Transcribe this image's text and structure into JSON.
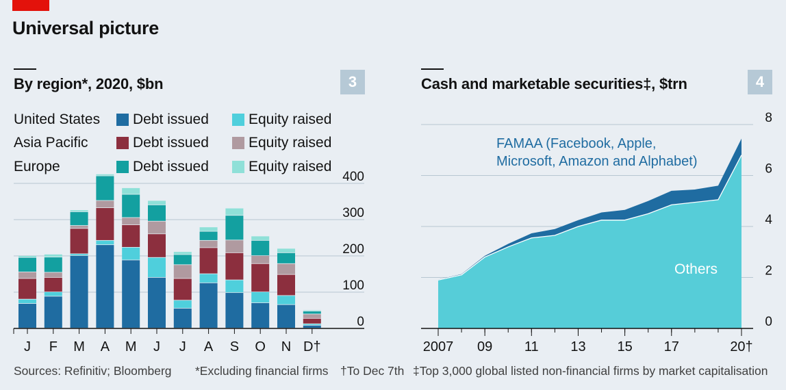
{
  "header": {
    "title": "Universal picture"
  },
  "panel3": {
    "title": "By region*, 2020, $bn",
    "number": "3",
    "legend": [
      {
        "region": "United States",
        "debt": "Debt issued",
        "equity": "Equity raised"
      },
      {
        "region": "Asia Pacific",
        "debt": "Debt issued",
        "equity": "Equity raised"
      },
      {
        "region": "Europe",
        "debt": "Debt issued",
        "equity": "Equity raised"
      }
    ]
  },
  "panel4": {
    "title": "Cash and marketable securities‡, $trn",
    "number": "4",
    "annotation_famaa_line1": "FAMAA (Facebook, Apple,",
    "annotation_famaa_line2": "Microsoft, Amazon and Alphabet)",
    "annotation_others": "Others"
  },
  "footer": {
    "sources": "Sources: Refinitiv; Bloomberg",
    "note1": "*Excluding financial firms",
    "note2": "†To Dec 7th",
    "note3": "‡Top 3,000 global listed non-financial firms by market capitalisation"
  },
  "colors": {
    "us_debt": "#1f6ca1",
    "us_equity": "#4fcfdc",
    "ap_debt": "#8c2f3e",
    "ap_equity": "#b09aa0",
    "eu_debt": "#13a0a0",
    "eu_equity": "#8fe0d8",
    "others": "#56cdd8",
    "famaa": "#1f6ca1",
    "background": "#e9eef3"
  },
  "chart_data": [
    {
      "type": "bar",
      "stacked": true,
      "categories": [
        "J",
        "F",
        "M",
        "A",
        "M",
        "J",
        "J",
        "A",
        "S",
        "O",
        "N",
        "D†"
      ],
      "ylim": [
        0,
        400
      ],
      "yticks": [
        "0",
        "100",
        "200",
        "300",
        "400"
      ],
      "grid": true,
      "series": [
        {
          "name": "United States Debt issued",
          "values": [
            68,
            88,
            200,
            230,
            188,
            140,
            55,
            125,
            98,
            70,
            65,
            8
          ]
        },
        {
          "name": "United States Equity raised",
          "values": [
            12,
            12,
            5,
            12,
            35,
            55,
            22,
            25,
            35,
            30,
            25,
            4
          ]
        },
        {
          "name": "Asia Pacific Debt issued",
          "values": [
            57,
            40,
            70,
            90,
            62,
            65,
            60,
            72,
            75,
            78,
            58,
            15
          ]
        },
        {
          "name": "Asia Pacific Equity raised",
          "values": [
            18,
            14,
            8,
            20,
            20,
            35,
            38,
            20,
            35,
            22,
            30,
            12
          ]
        },
        {
          "name": "Europe Debt issued",
          "values": [
            40,
            42,
            38,
            68,
            64,
            45,
            28,
            25,
            68,
            42,
            30,
            8
          ]
        },
        {
          "name": "Europe Equity raised",
          "values": [
            5,
            8,
            5,
            5,
            18,
            12,
            8,
            12,
            20,
            12,
            12,
            3
          ]
        }
      ]
    },
    {
      "type": "area",
      "stacked": true,
      "x": [
        2007,
        2008,
        2009,
        2010,
        2011,
        2012,
        2013,
        2014,
        2015,
        2016,
        2017,
        2018,
        2019,
        2020
      ],
      "xticks": [
        "2007",
        "09",
        "11",
        "13",
        "15",
        "17",
        "20†"
      ],
      "ylim": [
        0,
        8
      ],
      "yticks": [
        "0",
        "2",
        "4",
        "6",
        "8"
      ],
      "grid": true,
      "series": [
        {
          "name": "Others",
          "values": [
            1.9,
            2.1,
            2.8,
            3.2,
            3.55,
            3.65,
            4.0,
            4.25,
            4.25,
            4.5,
            4.85,
            4.95,
            5.05,
            6.8
          ]
        },
        {
          "name": "FAMAA (Facebook, Apple, Microsoft, Amazon and Alphabet)",
          "values": [
            0.02,
            0.03,
            0.05,
            0.12,
            0.18,
            0.25,
            0.25,
            0.3,
            0.4,
            0.5,
            0.55,
            0.5,
            0.55,
            0.65
          ]
        }
      ]
    }
  ]
}
